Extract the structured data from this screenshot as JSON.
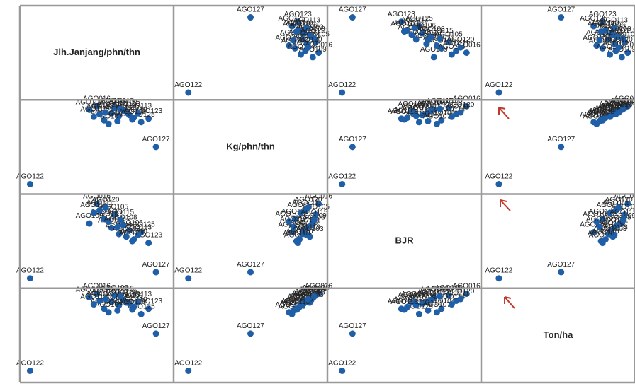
{
  "chart_data": {
    "type": "scatter_matrix",
    "color": "#1f5fa8",
    "point_labels": [
      "AGO122",
      "AGO127",
      "AGO016",
      "AGO123",
      "AGO125",
      "AGO109",
      "AGO101",
      "AGO102",
      "AGO103",
      "AGO104",
      "AGO105",
      "AGO106",
      "AGO107",
      "AGO108",
      "AGO110",
      "AGO111",
      "AGO112",
      "AGO113",
      "AGO114",
      "AGO115",
      "AGO118",
      "AGO120"
    ],
    "series": [
      {
        "name": "Jlh.Janjang/phn/thn",
        "lim": [
          0,
          100
        ],
        "values": [
          5,
          90,
          50,
          85,
          80,
          45,
          60,
          65,
          70,
          55,
          62,
          72,
          58,
          68,
          75,
          52,
          64,
          78,
          48,
          66,
          74,
          56
        ]
      },
      {
        "name": "Kg/phn/thn",
        "lim": [
          0,
          100
        ],
        "values": [
          8,
          50,
          96,
          82,
          78,
          92,
          88,
          85,
          90,
          80,
          94,
          86,
          76,
          91,
          83,
          87,
          79,
          88,
          84,
          93,
          81,
          89
        ]
      },
      {
        "name": "BJR",
        "lim": [
          0,
          100
        ],
        "values": [
          8,
          15,
          92,
          48,
          60,
          70,
          65,
          58,
          55,
          75,
          80,
          62,
          72,
          68,
          52,
          85,
          66,
          57,
          82,
          74,
          50,
          88
        ]
      },
      {
        "name": "Ton/ha",
        "lim": [
          0,
          100
        ],
        "values": [
          10,
          52,
          97,
          80,
          74,
          93,
          88,
          84,
          87,
          80,
          95,
          86,
          76,
          90,
          82,
          89,
          78,
          88,
          85,
          94,
          79,
          91
        ]
      }
    ]
  }
}
